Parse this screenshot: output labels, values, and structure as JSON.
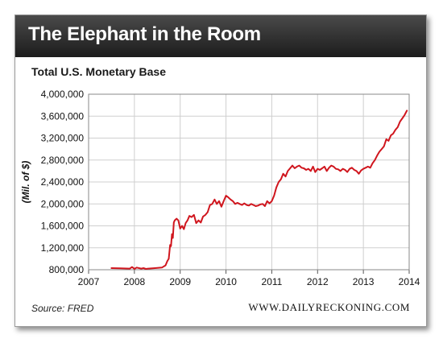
{
  "header": {
    "title": "The Elephant in the Room"
  },
  "footer": {
    "source": "Source: FRED",
    "website": "WWW.DAILYRECKONING.COM"
  },
  "chart_data": {
    "type": "line",
    "title": "Total U.S. Monetary Base",
    "xlabel": "",
    "ylabel": "(Mil. of $)",
    "xlim": [
      2007,
      2014
    ],
    "ylim": [
      800000,
      4000000
    ],
    "x_ticks": [
      2007,
      2008,
      2009,
      2010,
      2011,
      2012,
      2013,
      2014
    ],
    "y_ticks": [
      800000,
      1200000,
      1600000,
      2000000,
      2400000,
      2800000,
      3200000,
      3600000,
      4000000
    ],
    "y_tick_labels": [
      "800,000",
      "1,200,000",
      "1,600,000",
      "2,000,000",
      "2,400,000",
      "2,800,000",
      "3,200,000",
      "3,600,000",
      "4,000,000"
    ],
    "grid": true,
    "line_color": "#d0161e",
    "series": [
      {
        "x": [
          2007.5,
          2007.7,
          2007.9,
          2007.95,
          2008.0,
          2008.05,
          2008.15,
          2008.2,
          2008.25,
          2008.3,
          2008.45,
          2008.6,
          2008.68,
          2008.72,
          2008.75,
          2008.78,
          2008.8,
          2008.82,
          2008.84,
          2008.86,
          2008.88,
          2008.92,
          2008.96,
          2009.0,
          2009.04,
          2009.08,
          2009.12,
          2009.16,
          2009.2,
          2009.25,
          2009.3,
          2009.35,
          2009.4,
          2009.45,
          2009.5,
          2009.55,
          2009.6,
          2009.65,
          2009.7,
          2009.75,
          2009.8,
          2009.85,
          2009.9,
          2009.95,
          2010.0,
          2010.05,
          2010.1,
          2010.15,
          2010.2,
          2010.25,
          2010.3,
          2010.35,
          2010.4,
          2010.45,
          2010.5,
          2010.55,
          2010.6,
          2010.65,
          2010.7,
          2010.75,
          2010.8,
          2010.85,
          2010.9,
          2010.95,
          2011.0,
          2011.05,
          2011.1,
          2011.15,
          2011.2,
          2011.25,
          2011.3,
          2011.35,
          2011.4,
          2011.45,
          2011.5,
          2011.55,
          2011.6,
          2011.65,
          2011.7,
          2011.75,
          2011.8,
          2011.85,
          2011.9,
          2011.95,
          2012.0,
          2012.05,
          2012.1,
          2012.15,
          2012.2,
          2012.25,
          2012.3,
          2012.35,
          2012.4,
          2012.45,
          2012.5,
          2012.55,
          2012.6,
          2012.65,
          2012.7,
          2012.75,
          2012.8,
          2012.85,
          2012.9,
          2012.95,
          2013.0,
          2013.05,
          2013.1,
          2013.15,
          2013.2,
          2013.25,
          2013.3,
          2013.35,
          2013.4,
          2013.45,
          2013.5,
          2013.55,
          2013.6,
          2013.65,
          2013.7,
          2013.75,
          2013.8,
          2013.85,
          2013.9,
          2013.95
        ],
        "values": [
          830000,
          825000,
          820000,
          850000,
          815000,
          840000,
          820000,
          830000,
          815000,
          820000,
          830000,
          840000,
          880000,
          960000,
          1000000,
          1250000,
          1230000,
          1450000,
          1380000,
          1660000,
          1700000,
          1730000,
          1700000,
          1550000,
          1600000,
          1540000,
          1650000,
          1700000,
          1780000,
          1760000,
          1800000,
          1650000,
          1700000,
          1660000,
          1770000,
          1800000,
          1850000,
          1980000,
          2000000,
          2080000,
          2000000,
          2050000,
          1950000,
          2050000,
          2150000,
          2120000,
          2080000,
          2050000,
          2000000,
          2020000,
          2000000,
          1980000,
          2010000,
          1980000,
          1970000,
          2000000,
          1980000,
          1960000,
          1970000,
          1990000,
          2000000,
          1960000,
          2050000,
          2010000,
          2050000,
          2150000,
          2300000,
          2400000,
          2450000,
          2550000,
          2500000,
          2600000,
          2650000,
          2700000,
          2650000,
          2680000,
          2700000,
          2660000,
          2650000,
          2620000,
          2640000,
          2600000,
          2680000,
          2580000,
          2640000,
          2620000,
          2650000,
          2680000,
          2600000,
          2660000,
          2700000,
          2680000,
          2640000,
          2630000,
          2600000,
          2640000,
          2620000,
          2580000,
          2640000,
          2660000,
          2620000,
          2600000,
          2550000,
          2610000,
          2640000,
          2660000,
          2680000,
          2660000,
          2740000,
          2800000,
          2880000,
          2950000,
          3000000,
          3050000,
          3180000,
          3150000,
          3250000,
          3280000,
          3350000,
          3400000,
          3500000,
          3560000,
          3620000,
          3700000
        ]
      }
    ]
  }
}
